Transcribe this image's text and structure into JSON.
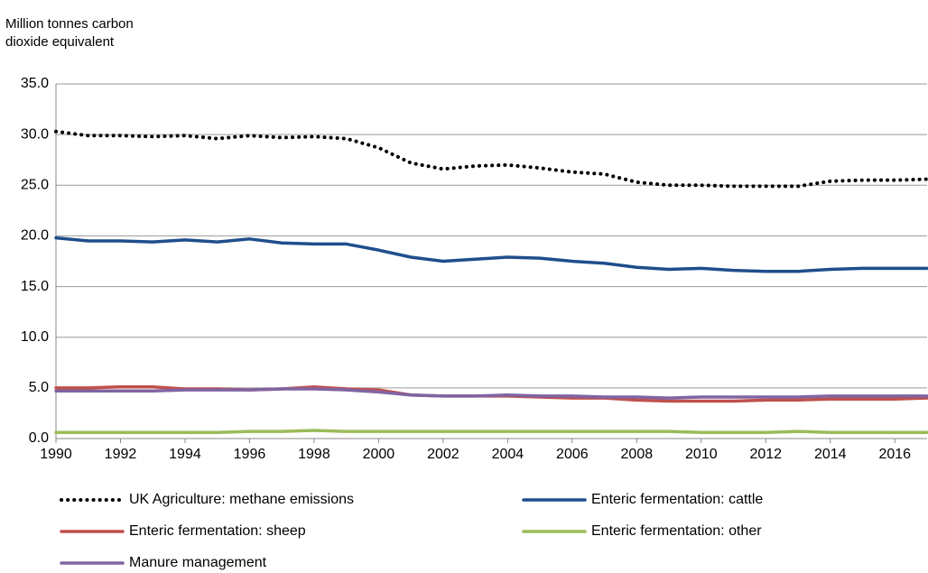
{
  "chart_data": {
    "type": "line",
    "y_label": [
      "Million tonnes carbon",
      "dioxide equivalent"
    ],
    "x": [
      1990,
      1991,
      1992,
      1993,
      1994,
      1995,
      1996,
      1997,
      1998,
      1999,
      2000,
      2001,
      2002,
      2003,
      2004,
      2005,
      2006,
      2007,
      2008,
      2009,
      2010,
      2011,
      2012,
      2013,
      2014,
      2015,
      2016,
      2017
    ],
    "series": [
      {
        "name": "UK Agriculture: methane emissions",
        "color": "#000000",
        "style": "dotted",
        "values": [
          30.3,
          29.9,
          29.9,
          29.8,
          29.9,
          29.6,
          29.9,
          29.7,
          29.8,
          29.6,
          28.7,
          27.2,
          26.6,
          26.9,
          27.0,
          26.7,
          26.3,
          26.1,
          25.3,
          25.0,
          25.0,
          24.9,
          24.9,
          24.9,
          25.4,
          25.5,
          25.5,
          25.6
        ]
      },
      {
        "name": "Enteric fermentation: cattle",
        "color": "#1f4e8c",
        "style": "solid",
        "values": [
          19.8,
          19.5,
          19.5,
          19.4,
          19.6,
          19.4,
          19.7,
          19.3,
          19.2,
          19.2,
          18.6,
          17.9,
          17.5,
          17.7,
          17.9,
          17.8,
          17.5,
          17.3,
          16.9,
          16.7,
          16.8,
          16.6,
          16.5,
          16.5,
          16.7,
          16.8,
          16.8,
          16.8
        ]
      },
      {
        "name": "Enteric fermentation: sheep",
        "color": "#c0504d",
        "style": "solid",
        "values": [
          5.0,
          5.0,
          5.1,
          5.1,
          4.9,
          4.9,
          4.8,
          4.9,
          5.1,
          4.9,
          4.8,
          4.3,
          4.2,
          4.2,
          4.2,
          4.1,
          4.0,
          4.0,
          3.8,
          3.7,
          3.7,
          3.7,
          3.8,
          3.8,
          3.9,
          3.9,
          3.9,
          4.0
        ]
      },
      {
        "name": "Enteric fermentation: other",
        "color": "#9bbb59",
        "style": "solid",
        "values": [
          0.6,
          0.6,
          0.6,
          0.6,
          0.6,
          0.6,
          0.7,
          0.7,
          0.8,
          0.7,
          0.7,
          0.7,
          0.7,
          0.7,
          0.7,
          0.7,
          0.7,
          0.7,
          0.7,
          0.7,
          0.6,
          0.6,
          0.6,
          0.7,
          0.6,
          0.6,
          0.6,
          0.6
        ]
      },
      {
        "name": "Manure management",
        "color": "#8064a2",
        "style": "solid",
        "values": [
          4.7,
          4.7,
          4.7,
          4.7,
          4.8,
          4.8,
          4.8,
          4.9,
          4.9,
          4.8,
          4.6,
          4.3,
          4.2,
          4.2,
          4.3,
          4.2,
          4.2,
          4.1,
          4.1,
          4.0,
          4.1,
          4.1,
          4.1,
          4.1,
          4.2,
          4.2,
          4.2,
          4.2
        ]
      }
    ],
    "xlim": [
      1990,
      2017
    ],
    "xticks": [
      1990,
      1992,
      1994,
      1996,
      1998,
      2000,
      2002,
      2004,
      2006,
      2008,
      2010,
      2012,
      2014,
      2016
    ],
    "ylim": [
      0,
      35
    ],
    "yticks": [
      {
        "value": 0,
        "label": "0.0"
      },
      {
        "value": 5,
        "label": "5.0"
      },
      {
        "value": 10,
        "label": "10.0"
      },
      {
        "value": 15,
        "label": "15.0"
      },
      {
        "value": 20,
        "label": "20.0"
      },
      {
        "value": 25,
        "label": "25.0"
      },
      {
        "value": 30,
        "label": "30.0"
      },
      {
        "value": 35,
        "label": "35.0"
      }
    ],
    "grid": true,
    "legend": "bottom"
  }
}
